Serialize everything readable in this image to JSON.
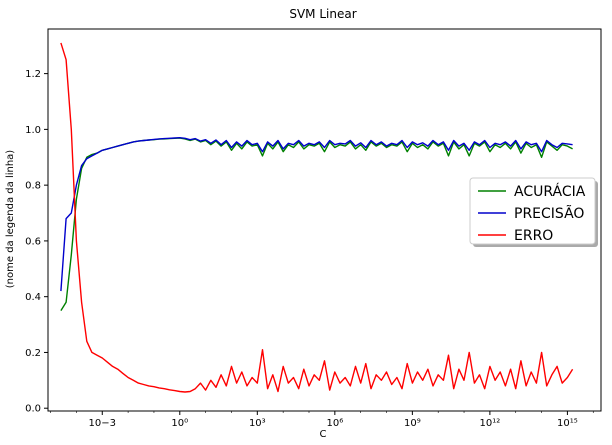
{
  "chart_data": {
    "type": "line",
    "title": "SVM Linear",
    "xlabel": "C",
    "ylabel": "(nome da legenda da linha)",
    "x_scale": "log",
    "x_ticks": [
      {
        "exp": -3,
        "label": "10−3"
      },
      {
        "exp": 0,
        "label": "10⁰"
      },
      {
        "exp": 3,
        "label": "10³"
      },
      {
        "exp": 6,
        "label": "10⁶"
      },
      {
        "exp": 9,
        "label": "10⁹"
      },
      {
        "exp": 12,
        "label": "10¹²"
      },
      {
        "exp": 15,
        "label": "10¹⁵"
      }
    ],
    "y_ticks": [
      0.0,
      0.2,
      0.4,
      0.6,
      0.8,
      1.0,
      1.2
    ],
    "xlim_log10": [
      -5.1,
      16.3
    ],
    "ylim": [
      -0.01,
      1.36
    ],
    "grid": false,
    "legend_position": "center-right",
    "x_log10": [
      -4.6,
      -4.4,
      -4.2,
      -4.0,
      -3.8,
      -3.6,
      -3.4,
      -3.2,
      -3.0,
      -2.8,
      -2.6,
      -2.4,
      -2.2,
      -2.0,
      -1.8,
      -1.6,
      -1.4,
      -1.2,
      -1.0,
      -0.8,
      -0.6,
      -0.4,
      -0.2,
      0.0,
      0.2,
      0.4,
      0.6,
      0.8,
      1.0,
      1.2,
      1.4,
      1.6,
      1.8,
      2.0,
      2.2,
      2.4,
      2.6,
      2.8,
      3.0,
      3.2,
      3.4,
      3.6,
      3.8,
      4.0,
      4.2,
      4.4,
      4.6,
      4.8,
      5.0,
      5.2,
      5.4,
      5.6,
      5.8,
      6.0,
      6.2,
      6.4,
      6.6,
      6.8,
      7.0,
      7.2,
      7.4,
      7.6,
      7.8,
      8.0,
      8.2,
      8.4,
      8.6,
      8.8,
      9.0,
      9.2,
      9.4,
      9.6,
      9.8,
      10.0,
      10.2,
      10.4,
      10.6,
      10.8,
      11.0,
      11.2,
      11.4,
      11.6,
      11.8,
      12.0,
      12.2,
      12.4,
      12.6,
      12.8,
      13.0,
      13.2,
      13.4,
      13.6,
      13.8,
      14.0,
      14.2,
      14.4,
      14.6,
      14.8,
      15.0,
      15.2
    ],
    "series": [
      {
        "name": "ACURÁCIA",
        "color": "#008000",
        "values": [
          0.35,
          0.38,
          0.55,
          0.75,
          0.86,
          0.9,
          0.91,
          0.915,
          0.925,
          0.93,
          0.935,
          0.94,
          0.945,
          0.95,
          0.955,
          0.958,
          0.96,
          0.962,
          0.963,
          0.965,
          0.966,
          0.967,
          0.968,
          0.969,
          0.966,
          0.96,
          0.965,
          0.955,
          0.96,
          0.945,
          0.958,
          0.94,
          0.955,
          0.925,
          0.95,
          0.93,
          0.955,
          0.94,
          0.945,
          0.905,
          0.95,
          0.93,
          0.955,
          0.92,
          0.945,
          0.935,
          0.955,
          0.93,
          0.945,
          0.94,
          0.95,
          0.92,
          0.955,
          0.935,
          0.945,
          0.94,
          0.955,
          0.93,
          0.945,
          0.925,
          0.955,
          0.94,
          0.95,
          0.935,
          0.945,
          0.94,
          0.955,
          0.92,
          0.95,
          0.935,
          0.945,
          0.93,
          0.955,
          0.94,
          0.95,
          0.905,
          0.955,
          0.93,
          0.945,
          0.905,
          0.95,
          0.94,
          0.955,
          0.92,
          0.945,
          0.935,
          0.95,
          0.93,
          0.955,
          0.915,
          0.95,
          0.935,
          0.945,
          0.9,
          0.955,
          0.94,
          0.925,
          0.945,
          0.94,
          0.93
        ]
      },
      {
        "name": "PRECISÃO",
        "color": "#0000cc",
        "values": [
          0.42,
          0.68,
          0.7,
          0.8,
          0.87,
          0.895,
          0.905,
          0.915,
          0.925,
          0.93,
          0.935,
          0.94,
          0.945,
          0.95,
          0.955,
          0.958,
          0.96,
          0.962,
          0.964,
          0.966,
          0.967,
          0.968,
          0.969,
          0.97,
          0.968,
          0.963,
          0.967,
          0.958,
          0.963,
          0.95,
          0.962,
          0.945,
          0.96,
          0.935,
          0.955,
          0.94,
          0.96,
          0.945,
          0.95,
          0.92,
          0.955,
          0.94,
          0.96,
          0.93,
          0.95,
          0.945,
          0.96,
          0.94,
          0.95,
          0.945,
          0.955,
          0.935,
          0.96,
          0.945,
          0.95,
          0.948,
          0.96,
          0.94,
          0.952,
          0.935,
          0.96,
          0.945,
          0.955,
          0.94,
          0.95,
          0.945,
          0.96,
          0.935,
          0.955,
          0.945,
          0.952,
          0.94,
          0.96,
          0.945,
          0.955,
          0.925,
          0.96,
          0.94,
          0.95,
          0.925,
          0.955,
          0.945,
          0.96,
          0.935,
          0.95,
          0.945,
          0.955,
          0.94,
          0.96,
          0.93,
          0.955,
          0.945,
          0.95,
          0.92,
          0.96,
          0.945,
          0.935,
          0.95,
          0.948,
          0.945
        ]
      },
      {
        "name": "ERRO",
        "color": "#ff0000",
        "values": [
          1.31,
          1.25,
          1.0,
          0.6,
          0.38,
          0.24,
          0.2,
          0.19,
          0.18,
          0.165,
          0.15,
          0.14,
          0.125,
          0.11,
          0.1,
          0.09,
          0.085,
          0.08,
          0.077,
          0.073,
          0.07,
          0.066,
          0.063,
          0.06,
          0.058,
          0.06,
          0.07,
          0.09,
          0.065,
          0.1,
          0.075,
          0.12,
          0.08,
          0.15,
          0.09,
          0.13,
          0.08,
          0.11,
          0.09,
          0.21,
          0.07,
          0.12,
          0.06,
          0.15,
          0.09,
          0.11,
          0.07,
          0.14,
          0.08,
          0.12,
          0.1,
          0.17,
          0.065,
          0.13,
          0.09,
          0.11,
          0.08,
          0.15,
          0.09,
          0.16,
          0.07,
          0.12,
          0.1,
          0.13,
          0.085,
          0.11,
          0.07,
          0.16,
          0.09,
          0.13,
          0.1,
          0.14,
          0.08,
          0.12,
          0.1,
          0.19,
          0.07,
          0.14,
          0.1,
          0.2,
          0.09,
          0.12,
          0.07,
          0.15,
          0.1,
          0.13,
          0.08,
          0.14,
          0.07,
          0.17,
          0.08,
          0.13,
          0.09,
          0.2,
          0.08,
          0.12,
          0.15,
          0.09,
          0.11,
          0.14
        ]
      }
    ]
  }
}
